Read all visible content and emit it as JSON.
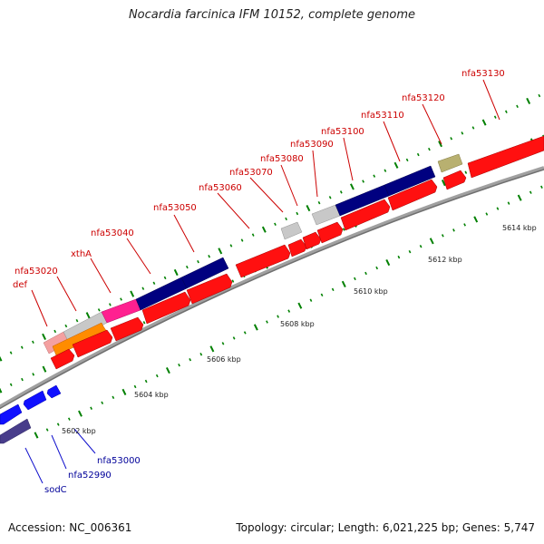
{
  "title": "Nocardia farcinica IFM 10152, complete genome",
  "accession": "Accession: NC_006361",
  "topology": "Topology: circular; Length: 6,021,225 bp; Genes: 5,747",
  "colors": {
    "forward_gene": "#ff0000",
    "reverse_gene": "#0000ff",
    "navy": "#000080",
    "magenta": "#ff1493",
    "orange": "#ff8c00",
    "salmon": "#f08080",
    "gray": "#c0c0c0",
    "olive": "#b8b070",
    "slateblue": "#483d8b",
    "backbone": "#808080",
    "tick": "#008000",
    "forward_label": "#cc0000",
    "reverse_label": "#000099"
  },
  "scale_labels": [
    "5602 kbp",
    "5604 kbp",
    "5606 kbp",
    "5608 kbp",
    "5610 kbp",
    "5612 kbp",
    "5614 kbp"
  ],
  "forward_labels": [
    "def",
    "nfa53020",
    "xthA",
    "nfa53040",
    "nfa53050",
    "nfa53060",
    "nfa53070",
    "nfa53080",
    "nfa53090",
    "nfa53100",
    "nfa53110",
    "nfa53120",
    "nfa53130"
  ],
  "reverse_labels": [
    "sodC",
    "nfa52990",
    "nfa53000"
  ]
}
